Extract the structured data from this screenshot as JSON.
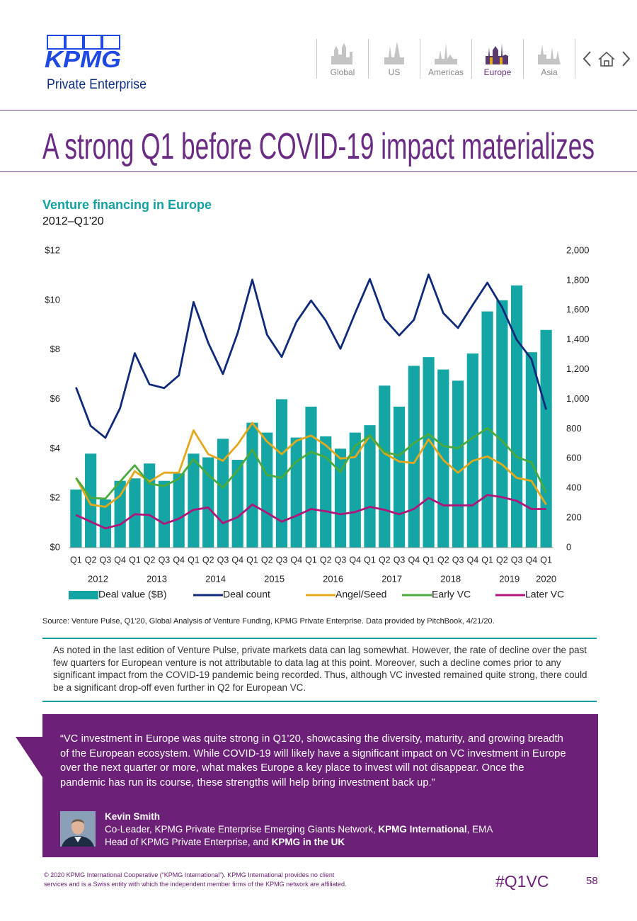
{
  "header": {
    "logo": "KPMG",
    "logo_sub": "Private Enterprise",
    "nav": [
      {
        "label": "Global",
        "active": false
      },
      {
        "label": "US",
        "active": false
      },
      {
        "label": "Americas",
        "active": false
      },
      {
        "label": "Europe",
        "active": true
      },
      {
        "label": "Asia",
        "active": false
      }
    ]
  },
  "page_title": "A strong Q1 before COVID-19 impact materializes",
  "chart_data": {
    "type": "combo",
    "title": "Venture financing in Europe",
    "subtitle": "2012–Q1'20",
    "categories": [
      "Q1",
      "Q2",
      "Q3",
      "Q4",
      "Q1",
      "Q2",
      "Q3",
      "Q4",
      "Q1",
      "Q2",
      "Q3",
      "Q4",
      "Q1",
      "Q2",
      "Q3",
      "Q4",
      "Q1",
      "Q2",
      "Q3",
      "Q4",
      "Q1",
      "Q2",
      "Q3",
      "Q4",
      "Q1",
      "Q2",
      "Q3",
      "Q4",
      "Q1",
      "Q2",
      "Q3",
      "Q4",
      "Q1"
    ],
    "groups": [
      "2012",
      "2013",
      "2014",
      "2015",
      "2016",
      "2017",
      "2018",
      "2019",
      "2020"
    ],
    "ylim": [
      0,
      12
    ],
    "yticks": [
      {
        "value": 0,
        "label": "$0"
      },
      {
        "value": 2,
        "label": "$2"
      },
      {
        "value": 4,
        "label": "$4"
      },
      {
        "value": 6,
        "label": "$6"
      },
      {
        "value": 8,
        "label": "$8"
      },
      {
        "value": 10,
        "label": "$10"
      },
      {
        "value": 12,
        "label": "$12"
      }
    ],
    "y2lim": [
      0,
      2000
    ],
    "y2ticks": [
      0,
      200,
      400,
      600,
      800,
      {
        "value": 1000,
        "label": "1,000"
      },
      {
        "value": 1200,
        "label": "1,200"
      },
      {
        "value": 1400,
        "label": "1,400"
      },
      {
        "value": 1600,
        "label": "1,600"
      },
      {
        "value": 1800,
        "label": "1,800"
      },
      {
        "value": 2000,
        "label": "2,000"
      }
    ],
    "grid": false,
    "series": [
      {
        "name": "Deal value ($B)",
        "type": "bar",
        "color": "#14a5a5",
        "values": [
          2.35,
          3.8,
          1.95,
          2.7,
          2.8,
          3.4,
          2.7,
          3.0,
          3.8,
          3.65,
          4.4,
          3.55,
          5.05,
          4.65,
          6.0,
          4.45,
          5.7,
          4.5,
          4.0,
          4.65,
          4.95,
          6.55,
          5.7,
          7.35,
          7.7,
          7.2,
          6.75,
          7.85,
          9.55,
          10.0,
          10.6,
          7.9,
          8.8
        ]
      },
      {
        "name": "Deal count",
        "type": "line",
        "axis": "y2",
        "color": "#102a7a",
        "values": [
          1080,
          820,
          740,
          940,
          1310,
          1100,
          1075,
          1160,
          1655,
          1380,
          1170,
          1445,
          1805,
          1435,
          1285,
          1520,
          1665,
          1530,
          1340,
          1580,
          1810,
          1540,
          1430,
          1535,
          1840,
          1580,
          1480,
          1635,
          1785,
          1620,
          1400,
          1270,
          930
        ]
      },
      {
        "name": "Angel/Seed",
        "type": "line",
        "axis": "y2",
        "color": "#e3a81b",
        "values": [
          470,
          290,
          275,
          350,
          515,
          445,
          505,
          505,
          790,
          630,
          585,
          695,
          840,
          715,
          630,
          720,
          755,
          690,
          600,
          610,
          755,
          635,
          580,
          570,
          730,
          590,
          505,
          585,
          615,
          560,
          470,
          450,
          290
        ]
      },
      {
        "name": "Early VC",
        "type": "line",
        "axis": "y2",
        "color": "#4aaa3c",
        "values": [
          470,
          335,
          330,
          445,
          555,
          430,
          415,
          465,
          595,
          490,
          405,
          520,
          660,
          490,
          470,
          580,
          645,
          610,
          510,
          685,
          755,
          645,
          620,
          705,
          765,
          685,
          670,
          740,
          805,
          720,
          610,
          575,
          370
        ]
      },
      {
        "name": "Later VC",
        "type": "line",
        "axis": "y2",
        "color": "#b0157a",
        "values": [
          220,
          175,
          130,
          155,
          225,
          220,
          160,
          195,
          255,
          270,
          165,
          205,
          290,
          235,
          175,
          215,
          260,
          245,
          225,
          240,
          275,
          255,
          225,
          260,
          335,
          285,
          285,
          285,
          355,
          340,
          315,
          260,
          260
        ]
      }
    ],
    "source": "Source: Venture Pulse, Q1'20, Global Analysis of Venture Funding, KPMG Private Enterprise. Data provided by PitchBook, 4/21/20."
  },
  "commentary": "As noted in the last edition of Venture Pulse, private markets data can lag somewhat. However, the rate of decline over the past few quarters for European venture is not attributable to data lag at this point. Moreover, such a decline comes prior to any significant impact from the COVID-19 pandemic being recorded. Thus, although VC invested remained quite strong, there could be a significant drop-off even further in Q2 for European VC.",
  "quote": {
    "text": "“VC investment in Europe was quite strong in Q1’20, showcasing the diversity, maturity, and growing breadth of the European ecosystem. While COVID-19 will likely have a significant impact on VC investment in Europe over the next quarter or more, what makes Europe a key place to invest will not disappear. Once the pandemic has run its course, these strengths will help bring investment back up.”",
    "name": "Kevin Smith",
    "role_lines": [
      [
        {
          "text": "Co-Leader, KPMG Private Enterprise Emerging Giants Network, ",
          "bold": false
        },
        {
          "text": "KPMG International",
          "bold": true
        },
        {
          "text": ", EMA",
          "bold": false
        }
      ],
      [
        {
          "text": "Head of KPMG Private Enterprise, and ",
          "bold": false
        },
        {
          "text": "KPMG in the UK",
          "bold": true
        }
      ]
    ]
  },
  "footer": {
    "copyright": [
      "© 2020 KPMG International Cooperative (“KPMG International”). KPMG International provides no client",
      "services and is a Swiss entity with which the independent member firms of the KPMG network are affiliated."
    ],
    "hashtag": "#Q1VC",
    "page_number": "58"
  }
}
